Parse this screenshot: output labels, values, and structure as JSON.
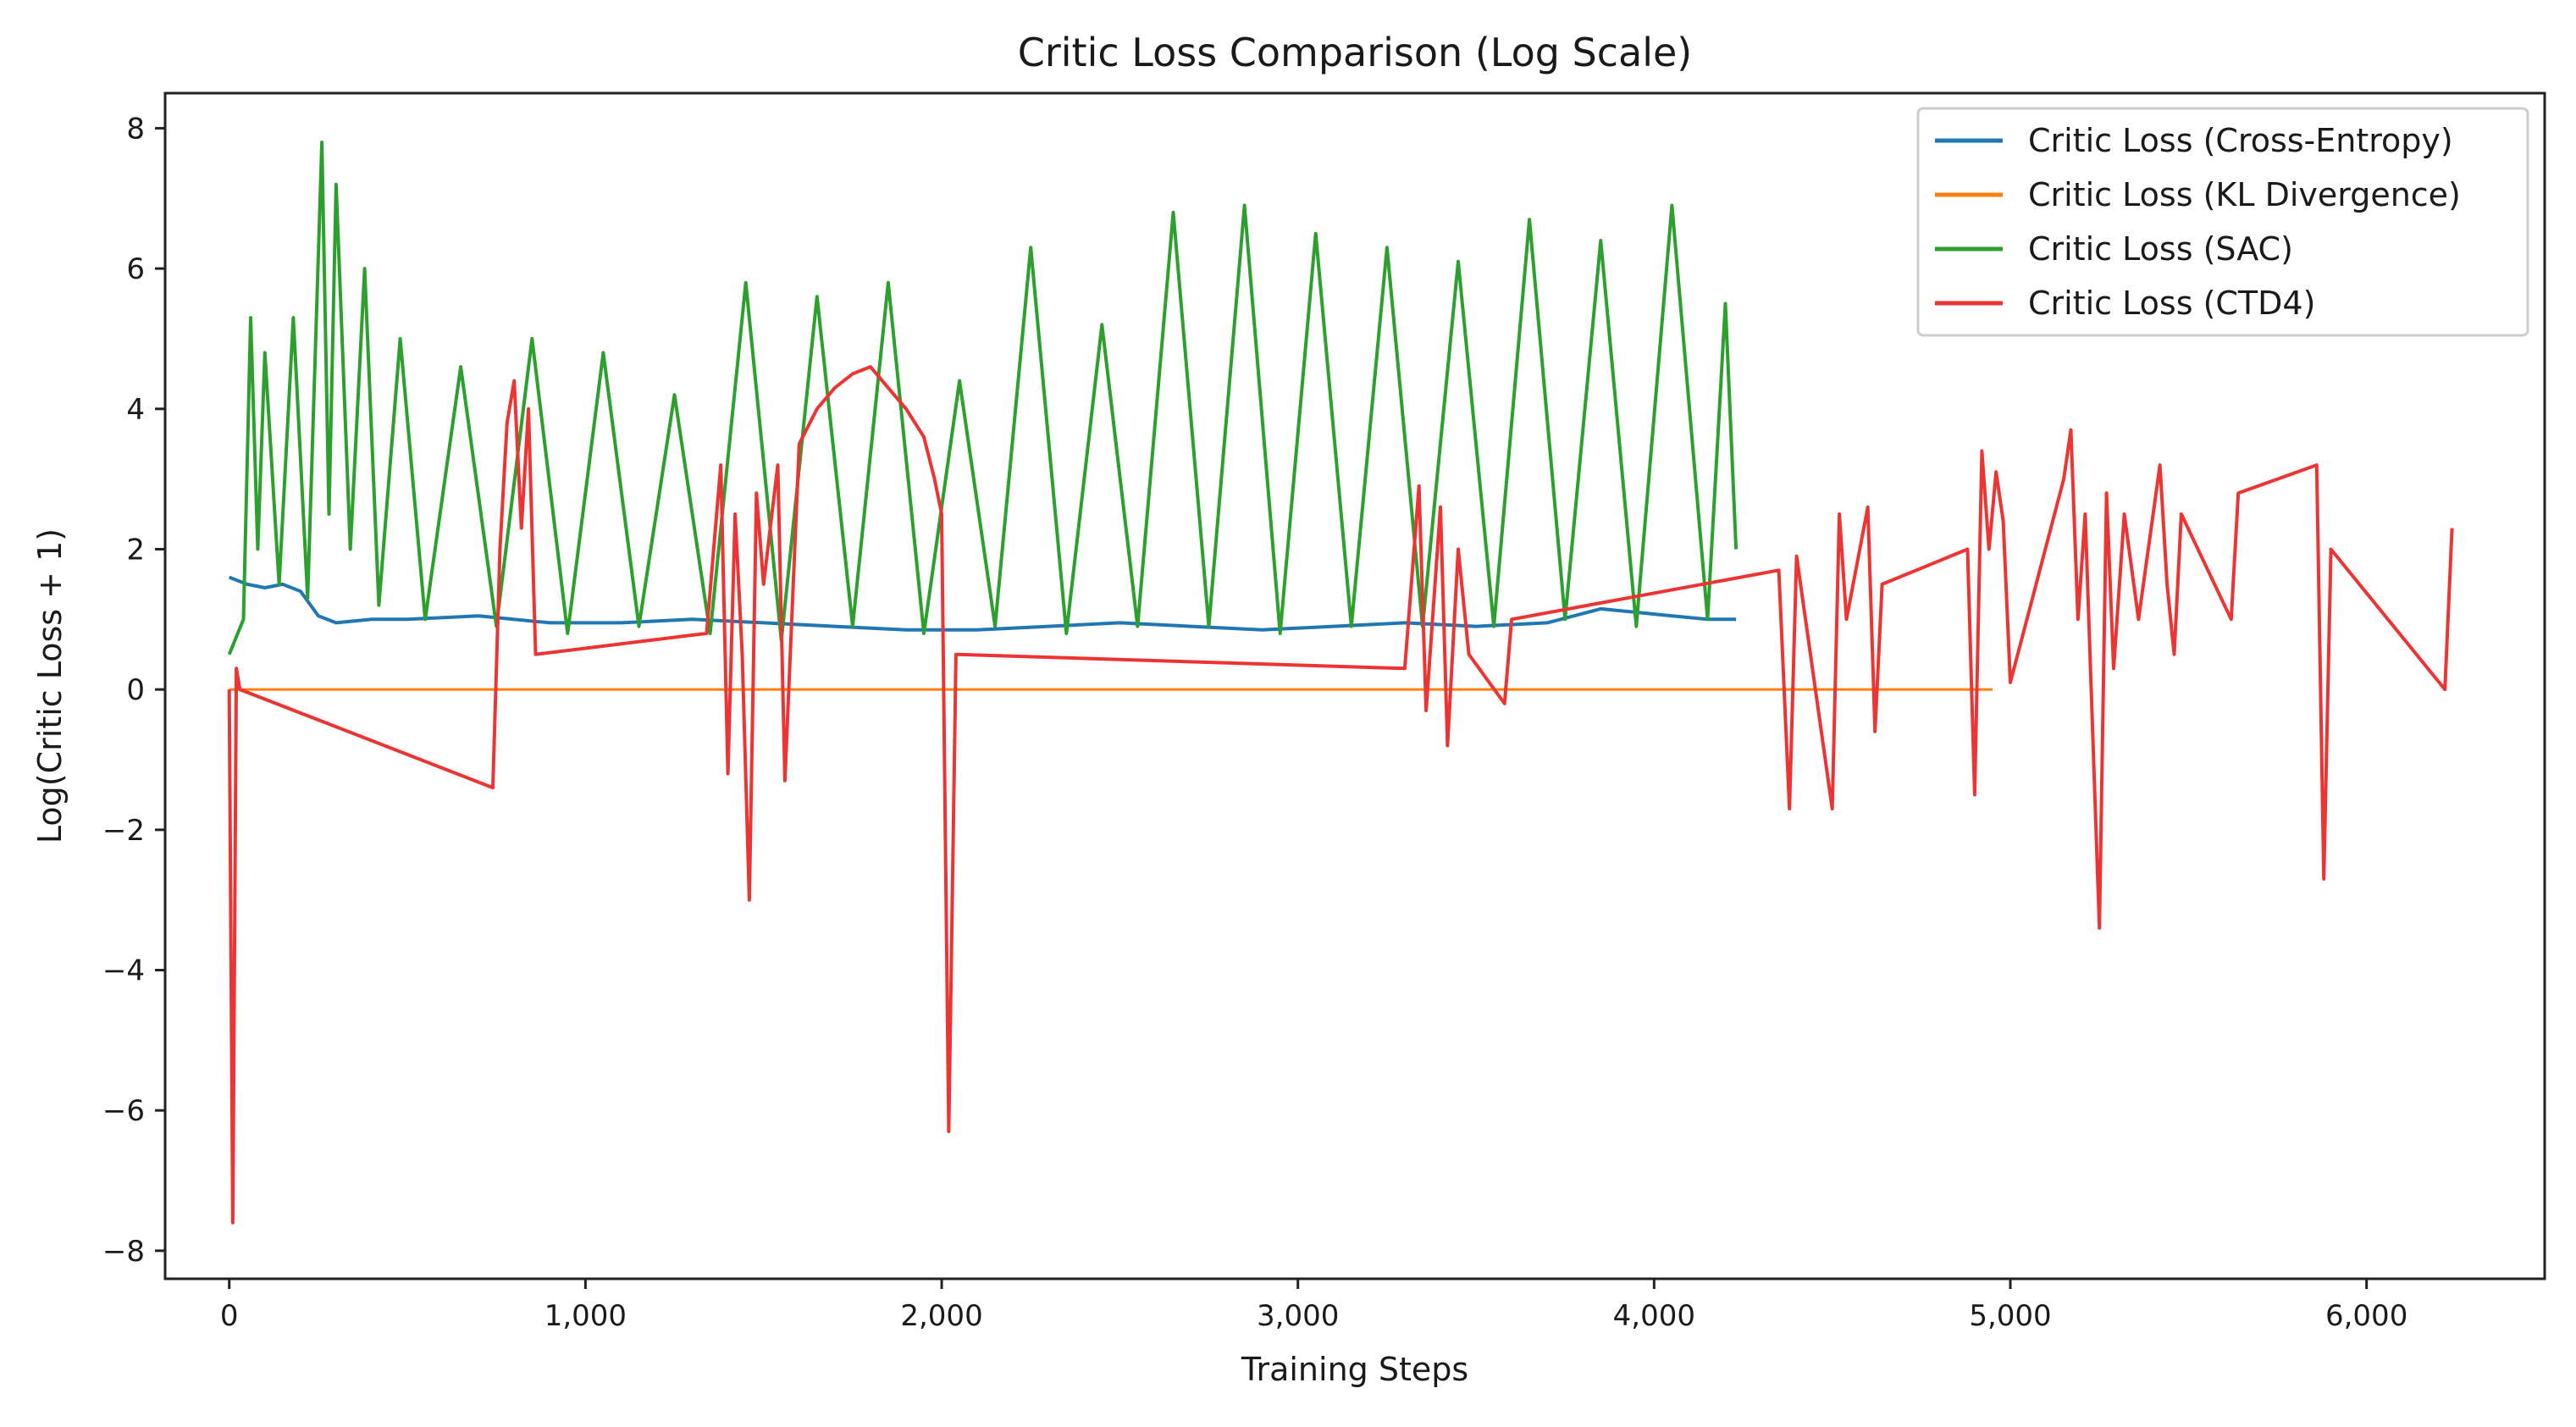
{
  "chart_data": {
    "type": "line",
    "title": "Critic Loss Comparison (Log Scale)",
    "xlabel": "Training Steps",
    "ylabel": "Log(Critic Loss + 1)",
    "xlim": [
      -180,
      6500
    ],
    "ylim": [
      -8.4,
      8.5
    ],
    "x_ticks": [
      0,
      1000,
      2000,
      3000,
      4000,
      5000,
      6000
    ],
    "x_tick_labels": [
      "0",
      "1,000",
      "2,000",
      "3,000",
      "4,000",
      "5,000",
      "6,000"
    ],
    "y_ticks": [
      -8,
      -6,
      -4,
      -2,
      0,
      2,
      4,
      6,
      8
    ],
    "y_tick_labels": [
      "−8",
      "−6",
      "−4",
      "−2",
      "0",
      "2",
      "4",
      "6",
      "8"
    ],
    "grid": false,
    "legend_position": "top-right",
    "series": [
      {
        "name": "Critic Loss (Cross-Entropy)",
        "color": "#1f77b4",
        "x": [
          0,
          50,
          100,
          150,
          200,
          250,
          300,
          400,
          500,
          700,
          900,
          1100,
          1300,
          1500,
          1700,
          1900,
          2100,
          2300,
          2500,
          2700,
          2900,
          3100,
          3300,
          3500,
          3700,
          3850,
          3950,
          4050,
          4150,
          4230
        ],
        "values": [
          1.6,
          1.5,
          1.45,
          1.5,
          1.4,
          1.05,
          0.95,
          1.0,
          1.0,
          1.05,
          0.95,
          0.95,
          1.0,
          0.95,
          0.9,
          0.85,
          0.85,
          0.9,
          0.95,
          0.9,
          0.85,
          0.9,
          0.95,
          0.9,
          0.95,
          1.15,
          1.1,
          1.05,
          1.0,
          1.0
        ]
      },
      {
        "name": "Critic Loss (KL Divergence)",
        "color": "#ff7f0e",
        "x": [
          0,
          4950
        ],
        "values": [
          0.0,
          0.0
        ]
      },
      {
        "name": "Critic Loss (SAC)",
        "color": "#2ca02c",
        "x": [
          0,
          40,
          60,
          80,
          100,
          140,
          180,
          220,
          260,
          280,
          300,
          340,
          380,
          420,
          480,
          550,
          650,
          750,
          850,
          950,
          1050,
          1150,
          1250,
          1350,
          1450,
          1550,
          1650,
          1750,
          1850,
          1950,
          2050,
          2150,
          2250,
          2350,
          2450,
          2550,
          2650,
          2750,
          2850,
          2950,
          3050,
          3150,
          3250,
          3350,
          3450,
          3550,
          3650,
          3750,
          3850,
          3950,
          4050,
          4150,
          4200,
          4230
        ],
        "values": [
          0.5,
          1.0,
          5.3,
          2.0,
          4.8,
          1.5,
          5.3,
          1.3,
          7.8,
          2.5,
          7.2,
          2.0,
          6.0,
          1.2,
          5.0,
          1.0,
          4.6,
          0.9,
          5.0,
          0.8,
          4.8,
          0.9,
          4.2,
          0.8,
          5.8,
          0.7,
          5.6,
          0.9,
          5.8,
          0.8,
          4.4,
          0.9,
          6.3,
          0.8,
          5.2,
          0.9,
          6.8,
          0.9,
          6.9,
          0.8,
          6.5,
          0.9,
          6.3,
          0.9,
          6.1,
          0.9,
          6.7,
          1.0,
          6.4,
          0.9,
          6.9,
          1.0,
          5.5,
          2.0
        ]
      },
      {
        "name": "Critic Loss (CTD4)",
        "color": "#ee3333",
        "x": [
          0,
          10,
          20,
          30,
          740,
          760,
          780,
          800,
          820,
          840,
          860,
          1340,
          1380,
          1400,
          1420,
          1440,
          1460,
          1480,
          1500,
          1540,
          1560,
          1600,
          1650,
          1700,
          1750,
          1800,
          1850,
          1900,
          1950,
          1980,
          2000,
          2020,
          2040,
          3300,
          3340,
          3360,
          3400,
          3420,
          3450,
          3480,
          3580,
          3600,
          4350,
          4380,
          4400,
          4500,
          4520,
          4540,
          4600,
          4620,
          4640,
          4880,
          4900,
          4920,
          4940,
          4960,
          4980,
          5000,
          5150,
          5170,
          5190,
          5210,
          5250,
          5270,
          5290,
          5320,
          5360,
          5420,
          5440,
          5460,
          5480,
          5620,
          5640,
          5860,
          5880,
          5900,
          6220,
          6240
        ],
        "values": [
          0.0,
          -7.6,
          0.3,
          0.0,
          -1.4,
          2.0,
          3.8,
          4.4,
          2.3,
          4.0,
          0.5,
          0.8,
          3.2,
          -1.2,
          2.5,
          0.5,
          -3.0,
          2.8,
          1.5,
          3.2,
          -1.3,
          3.5,
          4.0,
          4.3,
          4.5,
          4.6,
          4.3,
          4.0,
          3.6,
          3.0,
          2.5,
          -6.3,
          0.5,
          0.3,
          2.9,
          -0.3,
          2.6,
          -0.8,
          2.0,
          0.5,
          -0.2,
          1.0,
          1.7,
          -1.7,
          1.9,
          -1.7,
          2.5,
          1.0,
          2.6,
          -0.6,
          1.5,
          2.0,
          -1.5,
          3.4,
          2.0,
          3.1,
          2.4,
          0.1,
          3.0,
          3.7,
          1.0,
          2.5,
          -3.4,
          2.8,
          0.3,
          2.5,
          1.0,
          3.2,
          1.5,
          0.5,
          2.5,
          1.0,
          2.8,
          3.2,
          -2.7,
          2.0,
          0.0,
          2.3
        ]
      }
    ]
  }
}
